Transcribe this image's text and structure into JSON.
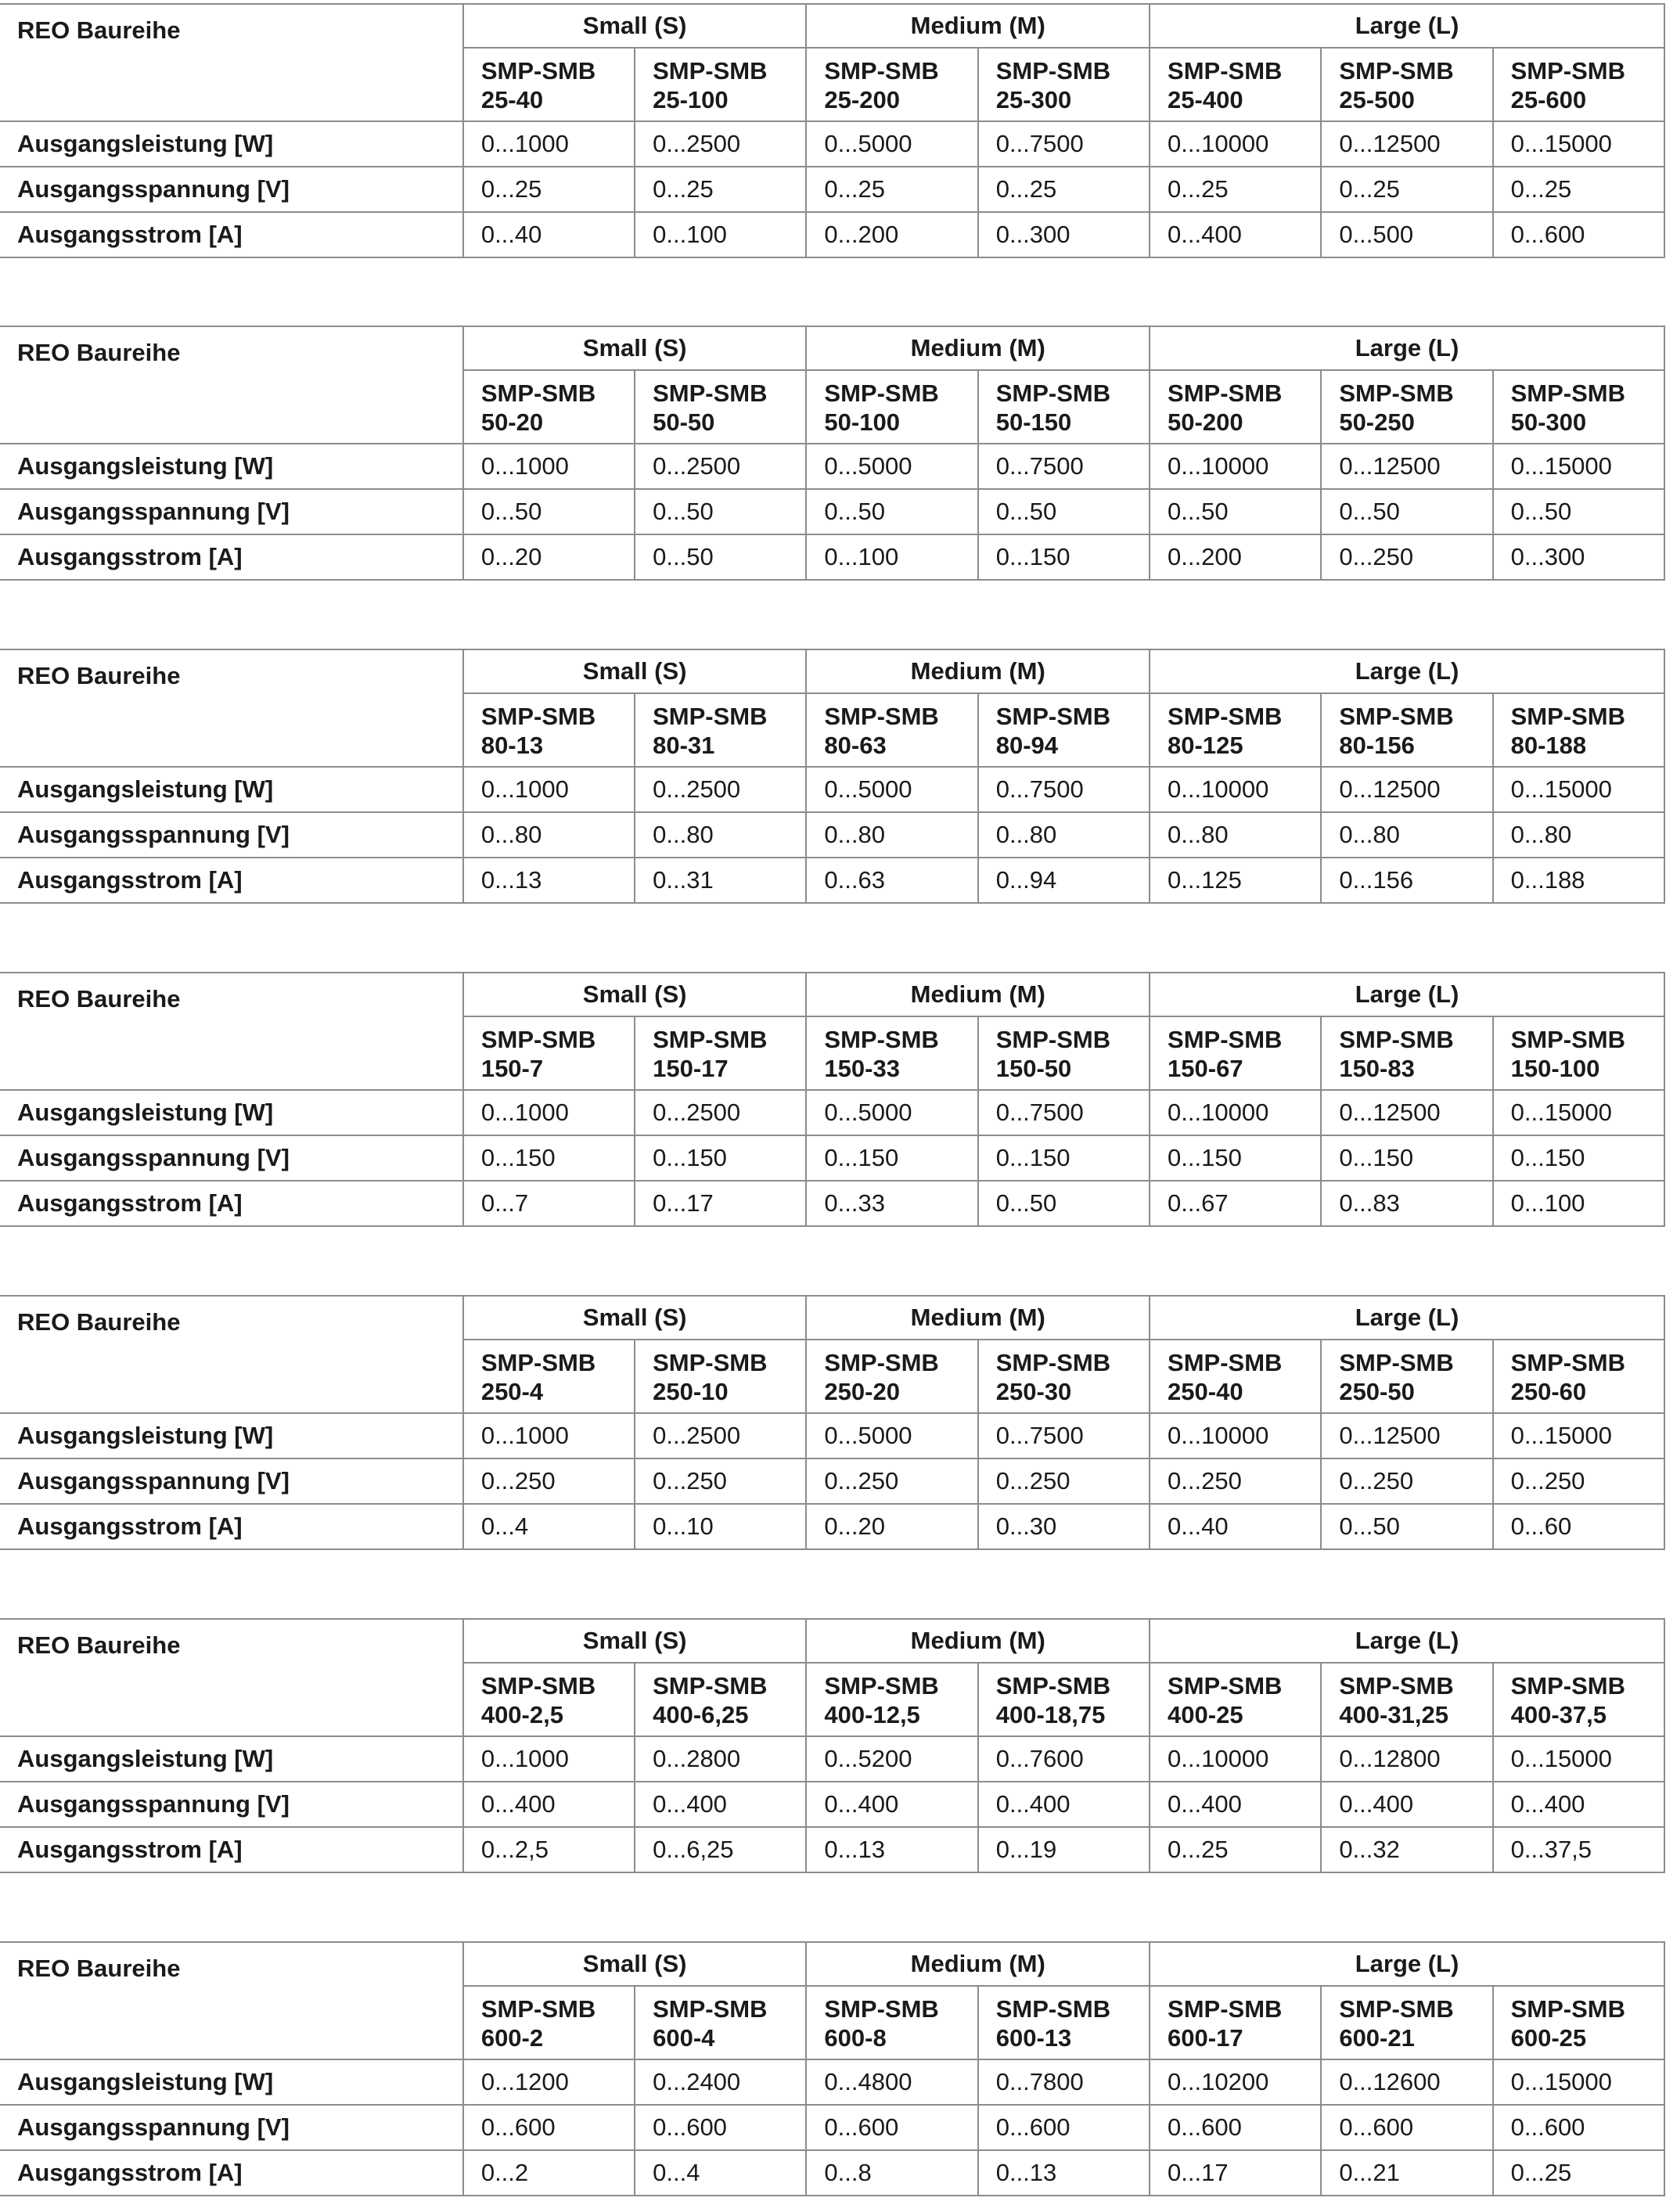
{
  "tables": [
    {
      "series_label": "REO Baureihe",
      "groups": [
        "Small (S)",
        "Medium (M)",
        "Large (L)"
      ],
      "models": [
        [
          "SMP-SMB",
          "25-40"
        ],
        [
          "SMP-SMB",
          "25-100"
        ],
        [
          "SMP-SMB",
          "25-200"
        ],
        [
          "SMP-SMB",
          "25-300"
        ],
        [
          "SMP-SMB",
          "25-400"
        ],
        [
          "SMP-SMB",
          "25-500"
        ],
        [
          "SMP-SMB",
          "25-600"
        ]
      ],
      "rows": [
        {
          "label": "Ausgangsleistung [W]",
          "values": [
            "0...1000",
            "0...2500",
            "0...5000",
            "0...7500",
            "0...10000",
            "0...12500",
            "0...15000"
          ]
        },
        {
          "label": "Ausgangsspannung [V]",
          "values": [
            "0...25",
            "0...25",
            "0...25",
            "0...25",
            "0...25",
            "0...25",
            "0...25"
          ]
        },
        {
          "label": "Ausgangsstrom [A]",
          "values": [
            "0...40",
            "0...100",
            "0...200",
            "0...300",
            "0...400",
            "0...500",
            "0...600"
          ]
        }
      ]
    },
    {
      "series_label": "REO Baureihe",
      "groups": [
        "Small (S)",
        "Medium (M)",
        "Large (L)"
      ],
      "models": [
        [
          "SMP-SMB",
          "50-20"
        ],
        [
          "SMP-SMB",
          "50-50"
        ],
        [
          "SMP-SMB",
          "50-100"
        ],
        [
          "SMP-SMB",
          "50-150"
        ],
        [
          "SMP-SMB",
          "50-200"
        ],
        [
          "SMP-SMB",
          "50-250"
        ],
        [
          "SMP-SMB",
          "50-300"
        ]
      ],
      "rows": [
        {
          "label": "Ausgangsleistung [W]",
          "values": [
            "0...1000",
            "0...2500",
            "0...5000",
            "0...7500",
            "0...10000",
            "0...12500",
            "0...15000"
          ]
        },
        {
          "label": "Ausgangsspannung [V]",
          "values": [
            "0...50",
            "0...50",
            "0...50",
            "0...50",
            "0...50",
            "0...50",
            "0...50"
          ]
        },
        {
          "label": "Ausgangsstrom [A]",
          "values": [
            "0...20",
            "0...50",
            "0...100",
            "0...150",
            "0...200",
            "0...250",
            "0...300"
          ]
        }
      ]
    },
    {
      "series_label": "REO Baureihe",
      "groups": [
        "Small (S)",
        "Medium (M)",
        "Large (L)"
      ],
      "models": [
        [
          "SMP-SMB",
          "80-13"
        ],
        [
          "SMP-SMB",
          "80-31"
        ],
        [
          "SMP-SMB",
          "80-63"
        ],
        [
          "SMP-SMB",
          "80-94"
        ],
        [
          "SMP-SMB",
          "80-125"
        ],
        [
          "SMP-SMB",
          "80-156"
        ],
        [
          "SMP-SMB",
          "80-188"
        ]
      ],
      "rows": [
        {
          "label": "Ausgangsleistung [W]",
          "values": [
            "0...1000",
            "0...2500",
            "0...5000",
            "0...7500",
            "0...10000",
            "0...12500",
            "0...15000"
          ]
        },
        {
          "label": "Ausgangsspannung [V]",
          "values": [
            "0...80",
            "0...80",
            "0...80",
            "0...80",
            "0...80",
            "0...80",
            "0...80"
          ]
        },
        {
          "label": "Ausgangsstrom [A]",
          "values": [
            "0...13",
            "0...31",
            "0...63",
            "0...94",
            "0...125",
            "0...156",
            "0...188"
          ]
        }
      ]
    },
    {
      "series_label": "REO Baureihe",
      "groups": [
        "Small (S)",
        "Medium (M)",
        "Large (L)"
      ],
      "models": [
        [
          "SMP-SMB",
          "150-7"
        ],
        [
          "SMP-SMB",
          "150-17"
        ],
        [
          "SMP-SMB",
          "150-33"
        ],
        [
          "SMP-SMB",
          "150-50"
        ],
        [
          "SMP-SMB",
          "150-67"
        ],
        [
          "SMP-SMB",
          "150-83"
        ],
        [
          "SMP-SMB",
          "150-100"
        ]
      ],
      "rows": [
        {
          "label": "Ausgangsleistung [W]",
          "values": [
            "0...1000",
            "0...2500",
            "0...5000",
            "0...7500",
            "0...10000",
            "0...12500",
            "0...15000"
          ]
        },
        {
          "label": "Ausgangsspannung [V]",
          "values": [
            "0...150",
            "0...150",
            "0...150",
            "0...150",
            "0...150",
            "0...150",
            "0...150"
          ]
        },
        {
          "label": "Ausgangsstrom [A]",
          "values": [
            "0...7",
            "0...17",
            "0...33",
            "0...50",
            "0...67",
            "0...83",
            "0...100"
          ]
        }
      ]
    },
    {
      "series_label": "REO Baureihe",
      "groups": [
        "Small (S)",
        "Medium (M)",
        "Large (L)"
      ],
      "models": [
        [
          "SMP-SMB",
          "250-4"
        ],
        [
          "SMP-SMB",
          "250-10"
        ],
        [
          "SMP-SMB",
          "250-20"
        ],
        [
          "SMP-SMB",
          "250-30"
        ],
        [
          "SMP-SMB",
          "250-40"
        ],
        [
          "SMP-SMB",
          "250-50"
        ],
        [
          "SMP-SMB",
          "250-60"
        ]
      ],
      "rows": [
        {
          "label": "Ausgangsleistung [W]",
          "values": [
            "0...1000",
            "0...2500",
            "0...5000",
            "0...7500",
            "0...10000",
            "0...12500",
            "0...15000"
          ]
        },
        {
          "label": "Ausgangsspannung [V]",
          "values": [
            "0...250",
            "0...250",
            "0...250",
            "0...250",
            "0...250",
            "0...250",
            "0...250"
          ]
        },
        {
          "label": "Ausgangsstrom [A]",
          "values": [
            "0...4",
            "0...10",
            "0...20",
            "0...30",
            "0...40",
            "0...50",
            "0...60"
          ]
        }
      ]
    },
    {
      "series_label": "REO Baureihe",
      "groups": [
        "Small (S)",
        "Medium (M)",
        "Large (L)"
      ],
      "models": [
        [
          "SMP-SMB",
          "400-2,5"
        ],
        [
          "SMP-SMB",
          "400-6,25"
        ],
        [
          "SMP-SMB",
          "400-12,5"
        ],
        [
          "SMP-SMB",
          "400-18,75"
        ],
        [
          "SMP-SMB",
          "400-25"
        ],
        [
          "SMP-SMB",
          "400-31,25"
        ],
        [
          "SMP-SMB",
          "400-37,5"
        ]
      ],
      "rows": [
        {
          "label": "Ausgangsleistung [W]",
          "values": [
            "0...1000",
            "0...2800",
            "0...5200",
            "0...7600",
            "0...10000",
            "0...12800",
            "0...15000"
          ]
        },
        {
          "label": "Ausgangsspannung [V]",
          "values": [
            "0...400",
            "0...400",
            "0...400",
            "0...400",
            "0...400",
            "0...400",
            "0...400"
          ]
        },
        {
          "label": "Ausgangsstrom [A]",
          "values": [
            "0...2,5",
            "0...6,25",
            "0...13",
            "0...19",
            "0...25",
            "0...32",
            "0...37,5"
          ]
        }
      ]
    },
    {
      "series_label": "REO Baureihe",
      "groups": [
        "Small (S)",
        "Medium (M)",
        "Large (L)"
      ],
      "models": [
        [
          "SMP-SMB",
          "600-2"
        ],
        [
          "SMP-SMB",
          "600-4"
        ],
        [
          "SMP-SMB",
          "600-8"
        ],
        [
          "SMP-SMB",
          "600-13"
        ],
        [
          "SMP-SMB",
          "600-17"
        ],
        [
          "SMP-SMB",
          "600-21"
        ],
        [
          "SMP-SMB",
          "600-25"
        ]
      ],
      "rows": [
        {
          "label": "Ausgangsleistung [W]",
          "values": [
            "0...1200",
            "0...2400",
            "0...4800",
            "0...7800",
            "0...10200",
            "0...12600",
            "0...15000"
          ]
        },
        {
          "label": "Ausgangsspannung [V]",
          "values": [
            "0...600",
            "0...600",
            "0...600",
            "0...600",
            "0...600",
            "0...600",
            "0...600"
          ]
        },
        {
          "label": "Ausgangsstrom [A]",
          "values": [
            "0...2",
            "0...4",
            "0...8",
            "0...13",
            "0...17",
            "0...21",
            "0...25"
          ]
        }
      ]
    }
  ]
}
